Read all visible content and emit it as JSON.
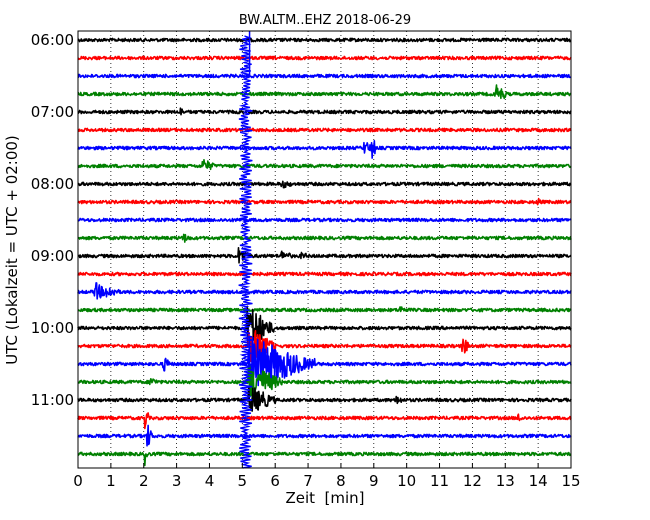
{
  "chart_data": {
    "type": "line",
    "title": "BW.ALTM..EHZ 2018-06-29",
    "xlabel": "Zeit  [min]",
    "ylabel": "UTC (Lokalzeit = UTC + 02:00)",
    "xlim": [
      0,
      15
    ],
    "x_ticks": [
      "0",
      "1",
      "2",
      "3",
      "4",
      "5",
      "6",
      "7",
      "8",
      "9",
      "10",
      "11",
      "12",
      "13",
      "14",
      "15"
    ],
    "y_ticks": [
      {
        "row": 0,
        "label": "06:00"
      },
      {
        "row": 4,
        "label": "07:00"
      },
      {
        "row": 8,
        "label": "08:00"
      },
      {
        "row": 12,
        "label": "09:00"
      },
      {
        "row": 16,
        "label": "10:00"
      },
      {
        "row": 20,
        "label": "11:00"
      }
    ],
    "grid": "vertical dotted at each minute",
    "trace_colors": [
      "#000000",
      "#ff0000",
      "#0000ff",
      "#008000"
    ],
    "rows": [
      {
        "start": "06:00",
        "events": []
      },
      {
        "start": "06:15",
        "events": []
      },
      {
        "start": "06:30",
        "events": []
      },
      {
        "start": "06:45",
        "events": [
          {
            "t": 12.7,
            "amp": 0.9,
            "dur": 0.35
          }
        ]
      },
      {
        "start": "07:00",
        "events": [
          {
            "t": 3.1,
            "amp": 0.4,
            "dur": 0.1
          }
        ]
      },
      {
        "start": "07:15",
        "events": []
      },
      {
        "start": "07:30",
        "events": [
          {
            "t": 8.7,
            "amp": 0.6,
            "dur": 0.3
          },
          {
            "t": 8.95,
            "amp": 1.2,
            "dur": 0.1
          }
        ]
      },
      {
        "start": "07:45",
        "events": [
          {
            "t": 3.8,
            "amp": 0.6,
            "dur": 0.35
          }
        ]
      },
      {
        "start": "08:00",
        "events": [
          {
            "t": 6.2,
            "amp": 0.3,
            "dur": 0.3
          }
        ]
      },
      {
        "start": "08:15",
        "events": [
          {
            "t": 14.0,
            "amp": 0.3,
            "dur": 0.1
          }
        ]
      },
      {
        "start": "08:30",
        "events": []
      },
      {
        "start": "08:45",
        "events": [
          {
            "t": 3.2,
            "amp": 0.4,
            "dur": 0.2
          }
        ]
      },
      {
        "start": "09:00",
        "events": [
          {
            "t": 4.9,
            "amp": 0.8,
            "dur": 0.3
          },
          {
            "t": 6.2,
            "amp": 0.4,
            "dur": 0.3
          },
          {
            "t": 6.8,
            "amp": 0.25,
            "dur": 0.2
          }
        ]
      },
      {
        "start": "09:15",
        "events": []
      },
      {
        "start": "09:30",
        "events": [
          {
            "t": 0.5,
            "amp": 1.0,
            "dur": 0.35
          },
          {
            "t": 0.85,
            "amp": 0.6,
            "dur": 0.4
          }
        ]
      },
      {
        "start": "09:45",
        "events": [
          {
            "t": 9.8,
            "amp": 0.3,
            "dur": 0.2
          }
        ]
      },
      {
        "start": "10:00",
        "events": [
          {
            "t": 5.15,
            "amp": 2.5,
            "dur": 0.8
          }
        ]
      },
      {
        "start": "10:15",
        "events": [
          {
            "t": 11.7,
            "amp": 0.9,
            "dur": 0.2
          },
          {
            "t": 5.2,
            "amp": 2.0,
            "dur": 0.8
          }
        ]
      },
      {
        "start": "10:30",
        "events": [
          {
            "t": 2.6,
            "amp": 0.7,
            "dur": 0.2
          },
          {
            "t": 5.2,
            "amp": 3.0,
            "dur": 2.0
          }
        ]
      },
      {
        "start": "10:45",
        "events": [
          {
            "t": 2.2,
            "amp": 0.4,
            "dur": 0.2
          },
          {
            "t": 5.2,
            "amp": 2.0,
            "dur": 1.0
          }
        ]
      },
      {
        "start": "11:00",
        "events": [
          {
            "t": 9.7,
            "amp": 0.4,
            "dur": 0.15
          },
          {
            "t": 5.2,
            "amp": 1.5,
            "dur": 0.8
          }
        ]
      },
      {
        "start": "11:15",
        "events": [
          {
            "t": 13.4,
            "amp": 0.4,
            "dur": 0.1
          },
          {
            "t": 2.05,
            "amp": 1.0,
            "dur": 0.1
          }
        ]
      },
      {
        "start": "11:30",
        "events": [
          {
            "t": 2.1,
            "amp": 1.3,
            "dur": 0.15
          }
        ]
      },
      {
        "start": "11:45",
        "events": [
          {
            "t": 2.05,
            "amp": 1.0,
            "dur": 0.1
          }
        ]
      }
    ],
    "big_event": {
      "t": 5.1,
      "row_start": 2,
      "row_end": 23
    }
  }
}
